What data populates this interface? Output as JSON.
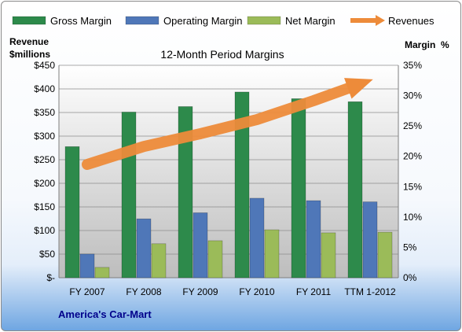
{
  "chart_data": {
    "type": "bar",
    "title": "12-Month Period Margins",
    "company": "America's Car-Mart",
    "left_axis_title": [
      "Revenue",
      "$millions"
    ],
    "right_axis_title": "Margin  %",
    "categories": [
      "FY 2007",
      "FY 2008",
      "FY 2009",
      "FY 2010",
      "FY 2011",
      "TTM 1-2012"
    ],
    "left_ticks": [
      "$-",
      "$50",
      "$100",
      "$150",
      "$200",
      "$250",
      "$300",
      "$350",
      "$400",
      "$450"
    ],
    "right_ticks": [
      "0%",
      "5%",
      "10%",
      "15%",
      "20%",
      "25%",
      "30%",
      "35%"
    ],
    "ylim_left": [
      0,
      450
    ],
    "ylim_right": [
      0,
      35
    ],
    "grid": true,
    "legend_position": "top",
    "series": [
      {
        "name": "Gross Margin",
        "color": "#2d8a4b",
        "axis": "right",
        "values": [
          21.6,
          27.3,
          28.2,
          30.6,
          29.5,
          29.0
        ]
      },
      {
        "name": "Operating Margin",
        "color": "#4f77b8",
        "axis": "right",
        "values": [
          3.9,
          9.7,
          10.7,
          13.1,
          12.7,
          12.5
        ]
      },
      {
        "name": "Net Margin",
        "color": "#9bbb59",
        "axis": "right",
        "values": [
          1.7,
          5.6,
          6.1,
          7.9,
          7.4,
          7.5
        ]
      },
      {
        "name": "Revenues",
        "color": "#ed8b3a",
        "axis": "left",
        "type": "trend-arrow",
        "values": [
          240,
          278,
          305,
          335,
          375,
          418
        ]
      }
    ]
  }
}
